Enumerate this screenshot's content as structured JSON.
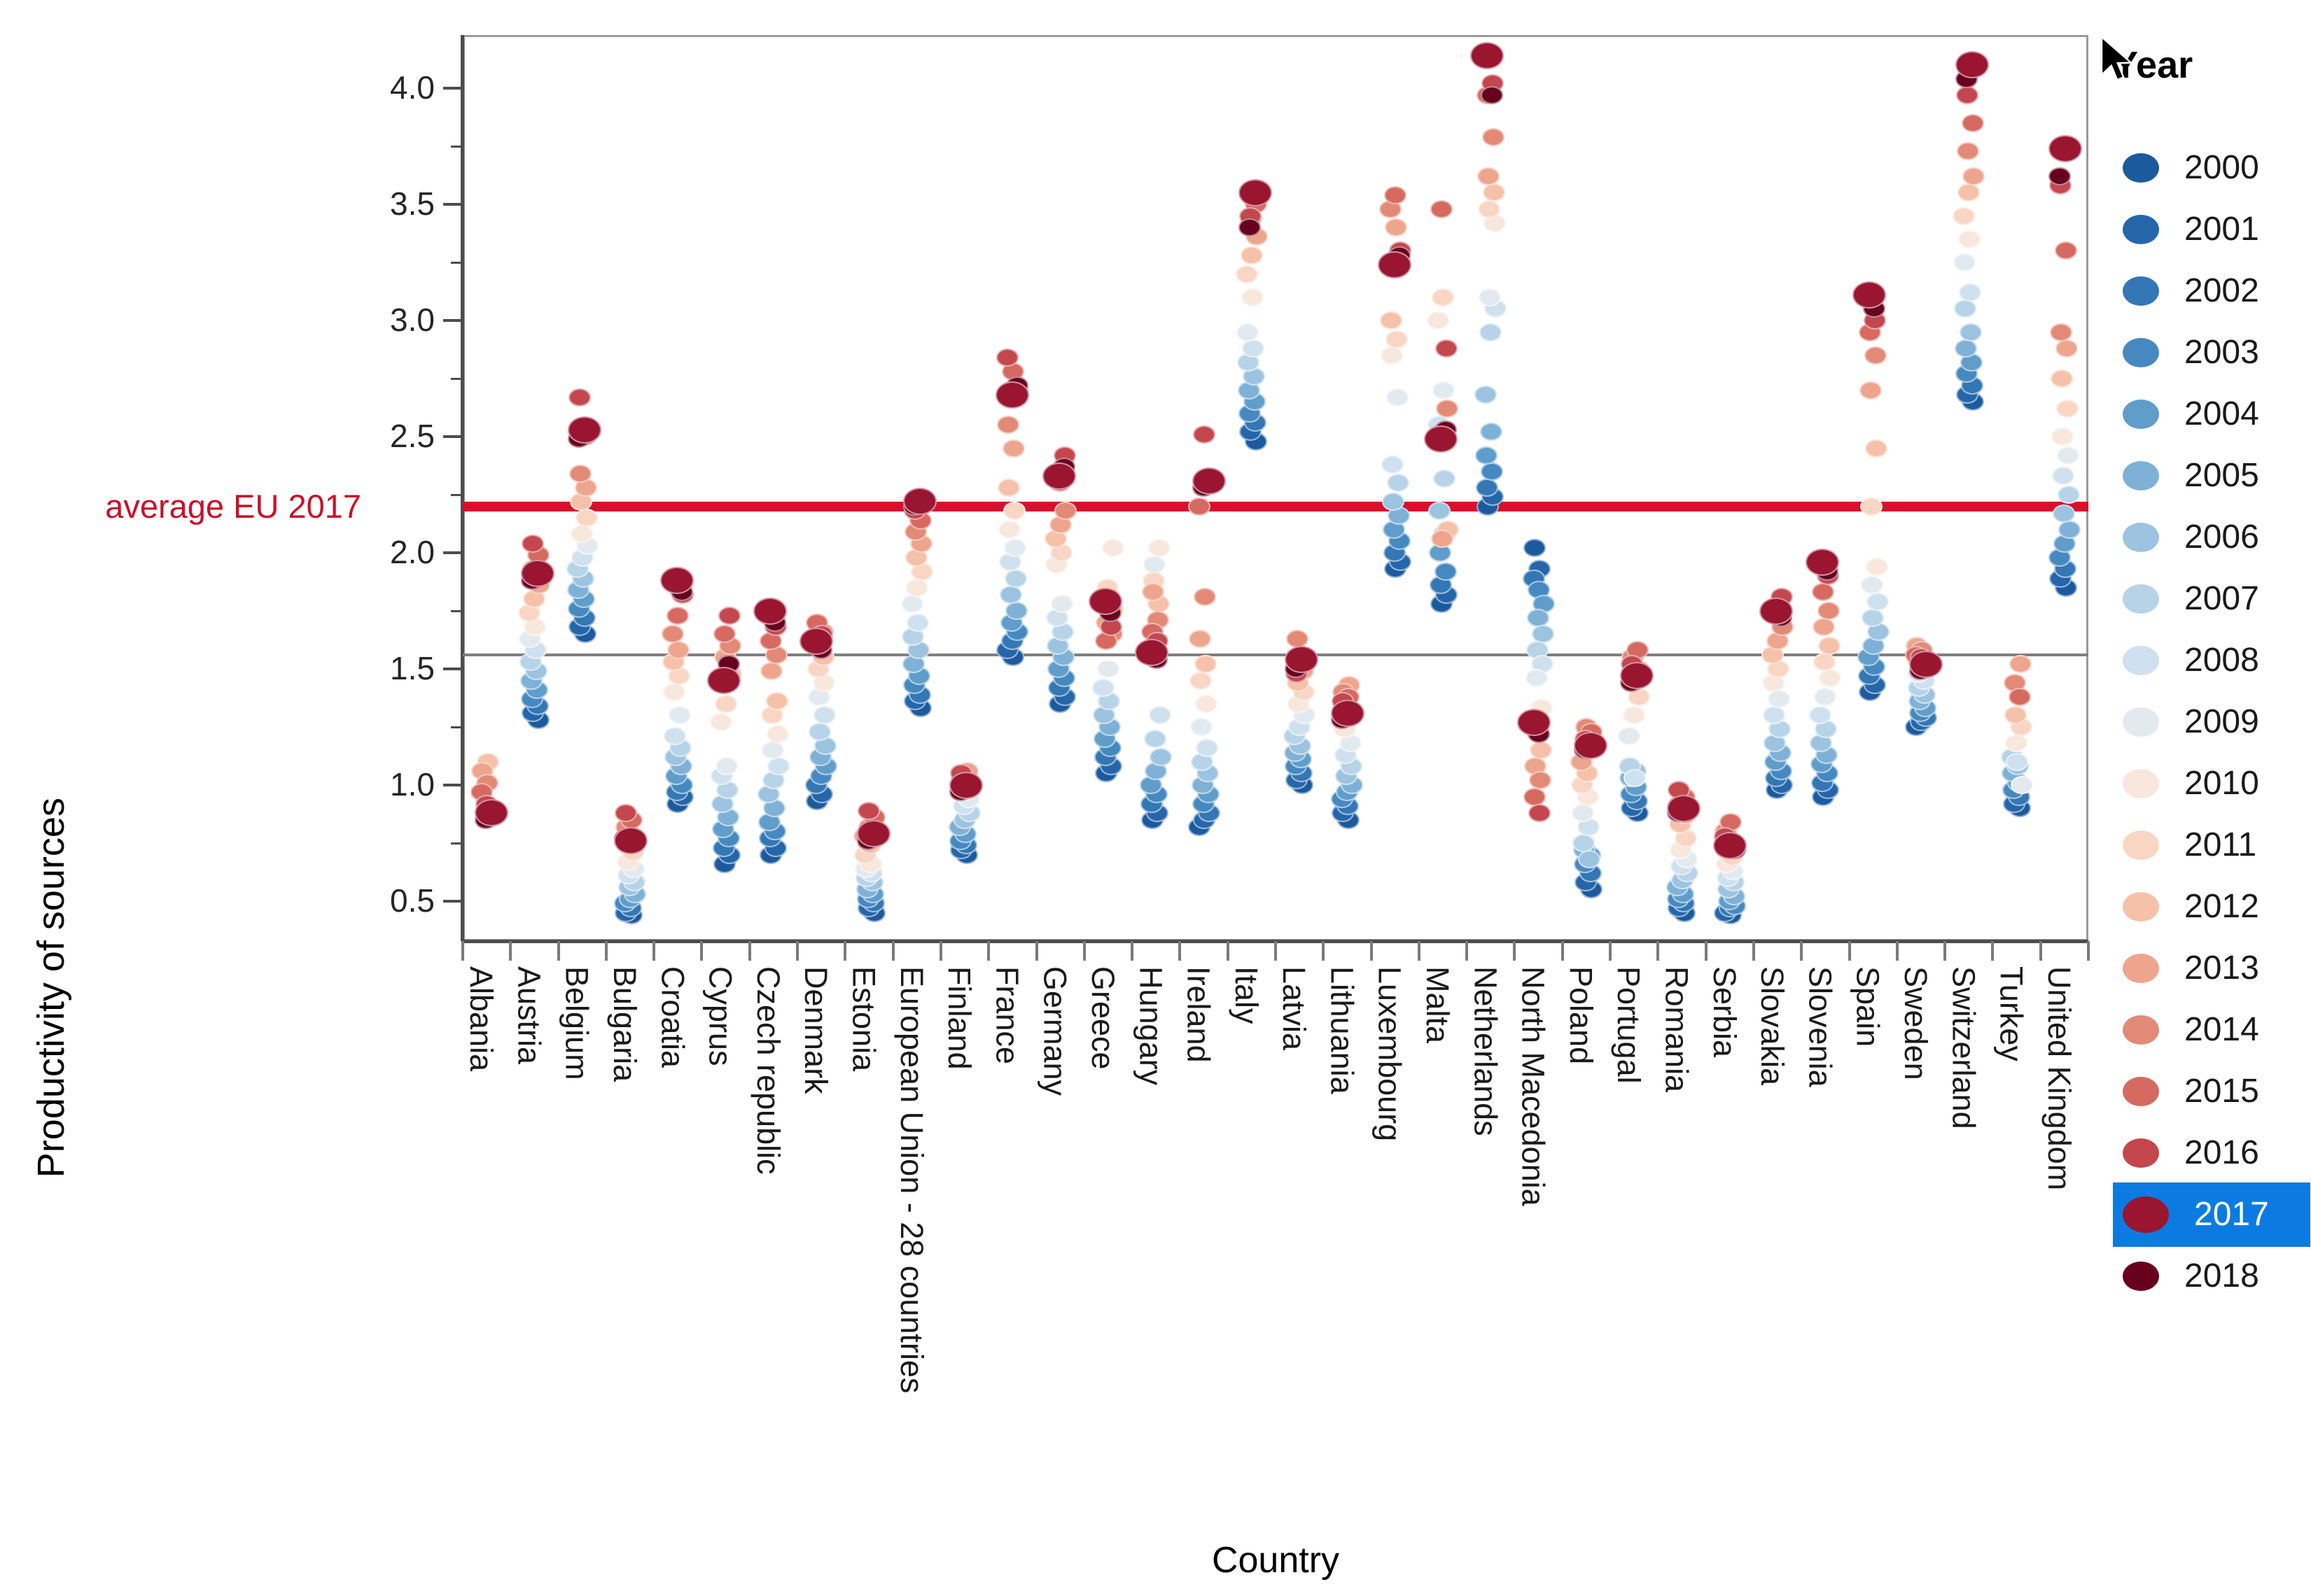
{
  "page": {
    "background": "#ffffff"
  },
  "y_axis": {
    "title": "Productivity of sources",
    "tick_labels": [
      "4.0",
      "3.5",
      "3.0",
      "2.5",
      "2.0",
      "1.5",
      "1.0",
      "0.5"
    ],
    "tick_values": [
      4.0,
      3.5,
      3.0,
      2.5,
      2.0,
      1.5,
      1.0,
      0.5
    ],
    "minor_tick_values": [
      3.75,
      3.25,
      2.75,
      2.25,
      1.75,
      1.25,
      0.75
    ]
  },
  "x_axis": {
    "title": "Country"
  },
  "reference_lines": {
    "eu_average": {
      "label": "average EU 2017",
      "value": 2.2,
      "color": "#d7112c"
    },
    "baseline": {
      "value": 1.56,
      "color": "#7f7f7f"
    }
  },
  "legend": {
    "title": "Year",
    "selected_year": "2017",
    "selection_color": "#0c7be1",
    "entries": [
      {
        "year": "2000",
        "color": "#1c5a9e"
      },
      {
        "year": "2001",
        "color": "#2566ab"
      },
      {
        "year": "2002",
        "color": "#3377b4"
      },
      {
        "year": "2003",
        "color": "#4689c0"
      },
      {
        "year": "2004",
        "color": "#609dcb"
      },
      {
        "year": "2005",
        "color": "#7fb1d6"
      },
      {
        "year": "2006",
        "color": "#9cc3df"
      },
      {
        "year": "2007",
        "color": "#b7d3e8"
      },
      {
        "year": "2008",
        "color": "#cfe0ee"
      },
      {
        "year": "2009",
        "color": "#e2eaf0"
      },
      {
        "year": "2010",
        "color": "#f7e7dc"
      },
      {
        "year": "2011",
        "color": "#f9d6c3"
      },
      {
        "year": "2012",
        "color": "#f5c1a9"
      },
      {
        "year": "2013",
        "color": "#eea58d"
      },
      {
        "year": "2014",
        "color": "#e38a77"
      },
      {
        "year": "2015",
        "color": "#d66a60"
      },
      {
        "year": "2016",
        "color": "#c4474e"
      },
      {
        "year": "2017",
        "color": "#991530"
      },
      {
        "year": "2018",
        "color": "#67001f"
      }
    ]
  },
  "chart_data": {
    "type": "scatter",
    "xlabel": "Country",
    "ylabel": "Productivity of sources",
    "ylim": [
      0.25,
      4.25
    ],
    "legend_position": "right",
    "grid": false,
    "highlight_year": 2017,
    "years": [
      2000,
      2001,
      2002,
      2003,
      2004,
      2005,
      2006,
      2007,
      2008,
      2009,
      2010,
      2011,
      2012,
      2013,
      2014,
      2015,
      2016,
      2017,
      2018
    ],
    "annotations": [
      {
        "text": "average EU 2017",
        "y": 2.2,
        "type": "hline-thick-red"
      },
      {
        "y": 1.56,
        "type": "hline-thin-gray"
      }
    ],
    "series": [
      {
        "country": "Albania",
        "values": [
          null,
          null,
          null,
          null,
          null,
          null,
          null,
          null,
          null,
          null,
          null,
          null,
          1.1,
          1.06,
          1.01,
          0.97,
          0.92,
          0.88,
          0.85
        ]
      },
      {
        "country": "Austria",
        "values": [
          1.28,
          1.31,
          1.34,
          1.37,
          1.41,
          1.45,
          1.49,
          1.53,
          1.58,
          1.63,
          1.68,
          1.74,
          1.8,
          1.86,
          1.93,
          1.99,
          2.04,
          1.91,
          1.88
        ]
      },
      {
        "country": "Belgium",
        "values": [
          1.65,
          1.68,
          1.72,
          1.76,
          1.8,
          1.84,
          1.89,
          1.93,
          1.98,
          2.03,
          2.08,
          2.15,
          2.22,
          2.28,
          2.34,
          2.5,
          2.67,
          2.53,
          2.49
        ]
      },
      {
        "country": "Bulgaria",
        "values": [
          0.44,
          0.45,
          0.47,
          0.49,
          0.51,
          0.53,
          0.56,
          0.58,
          0.61,
          0.64,
          0.67,
          0.71,
          0.74,
          0.78,
          0.82,
          0.85,
          0.88,
          0.76,
          0.77
        ]
      },
      {
        "country": "Croatia",
        "values": [
          0.92,
          0.95,
          0.97,
          1.0,
          1.04,
          1.08,
          1.12,
          1.16,
          1.21,
          1.3,
          1.4,
          1.47,
          1.53,
          1.58,
          1.65,
          1.73,
          1.82,
          1.88,
          1.83
        ]
      },
      {
        "country": "Cyprus",
        "values": [
          0.66,
          0.7,
          0.73,
          0.77,
          0.81,
          0.86,
          0.92,
          0.98,
          1.04,
          1.08,
          1.27,
          1.35,
          1.48,
          1.55,
          1.6,
          1.65,
          1.73,
          1.45,
          1.52
        ]
      },
      {
        "country": "Czech republic",
        "values": [
          0.7,
          0.73,
          0.77,
          0.8,
          0.84,
          0.9,
          0.96,
          1.02,
          1.08,
          1.15,
          1.22,
          1.3,
          1.36,
          1.49,
          1.56,
          1.62,
          1.68,
          1.75,
          1.7
        ]
      },
      {
        "country": "Denmark",
        "values": [
          0.93,
          0.96,
          1.0,
          1.04,
          1.08,
          1.12,
          1.17,
          1.23,
          1.3,
          1.38,
          1.44,
          1.5,
          1.55,
          1.6,
          1.66,
          1.7,
          1.65,
          1.62,
          1.58
        ]
      },
      {
        "country": "Estonia",
        "values": [
          0.45,
          0.47,
          0.49,
          0.51,
          0.53,
          0.55,
          0.58,
          0.6,
          0.62,
          0.64,
          0.66,
          0.7,
          0.74,
          0.78,
          0.82,
          0.86,
          0.89,
          0.79,
          0.76
        ]
      },
      {
        "country": "European Union - 28 countries",
        "values": [
          1.33,
          1.36,
          1.39,
          1.43,
          1.47,
          1.52,
          1.58,
          1.64,
          1.7,
          1.78,
          1.85,
          1.92,
          1.98,
          2.04,
          2.09,
          2.14,
          2.18,
          2.22,
          2.2
        ]
      },
      {
        "country": "Finland",
        "values": [
          0.7,
          0.72,
          0.74,
          0.76,
          0.79,
          0.82,
          0.85,
          0.88,
          0.91,
          0.94,
          0.97,
          1.0,
          1.03,
          1.06,
          1.04,
          1.02,
          1.05,
          1.0,
          0.97
        ]
      },
      {
        "country": "France",
        "values": [
          1.55,
          1.58,
          1.62,
          1.66,
          1.7,
          1.75,
          1.82,
          1.89,
          1.96,
          2.02,
          2.1,
          2.18,
          2.28,
          2.45,
          2.55,
          2.78,
          2.84,
          2.68,
          2.72
        ]
      },
      {
        "country": "Germany",
        "values": [
          1.35,
          1.38,
          1.42,
          1.46,
          1.5,
          1.55,
          1.6,
          1.66,
          1.72,
          1.78,
          1.95,
          2.0,
          2.06,
          2.12,
          2.18,
          2.3,
          2.42,
          2.33,
          2.37
        ]
      },
      {
        "country": "Greece",
        "values": [
          1.05,
          1.08,
          1.12,
          1.16,
          1.2,
          1.25,
          1.3,
          1.36,
          1.42,
          1.5,
          2.02,
          1.85,
          1.76,
          1.7,
          1.65,
          1.62,
          1.68,
          1.79,
          1.74
        ]
      },
      {
        "country": "Hungary",
        "values": [
          0.85,
          0.88,
          0.92,
          0.96,
          1.0,
          1.06,
          1.12,
          1.2,
          1.3,
          1.95,
          2.02,
          1.88,
          1.78,
          1.83,
          1.71,
          1.66,
          1.62,
          1.57,
          1.54
        ]
      },
      {
        "country": "Ireland",
        "values": [
          0.82,
          0.85,
          0.88,
          0.92,
          0.96,
          1.0,
          1.05,
          1.1,
          1.16,
          1.25,
          1.35,
          1.45,
          1.52,
          1.63,
          1.81,
          2.2,
          2.51,
          2.31,
          2.28
        ]
      },
      {
        "country": "Italy",
        "values": [
          2.48,
          2.52,
          2.56,
          2.6,
          2.65,
          2.7,
          2.76,
          2.82,
          2.88,
          2.95,
          3.1,
          3.2,
          3.28,
          3.36,
          3.44,
          3.5,
          3.45,
          3.55,
          3.4
        ]
      },
      {
        "country": "Latvia",
        "values": [
          1.0,
          1.02,
          1.05,
          1.08,
          1.11,
          1.14,
          1.17,
          1.21,
          1.25,
          1.3,
          1.35,
          1.4,
          1.44,
          1.49,
          1.63,
          1.55,
          1.48,
          1.54,
          1.5
        ]
      },
      {
        "country": "Lithuania",
        "values": [
          0.85,
          0.88,
          0.91,
          0.94,
          0.97,
          1.0,
          1.04,
          1.08,
          1.13,
          1.18,
          1.24,
          1.3,
          1.35,
          1.43,
          1.4,
          1.38,
          1.36,
          1.31,
          1.28
        ]
      },
      {
        "country": "Luxembourg",
        "values": [
          1.93,
          1.96,
          2.0,
          2.05,
          2.1,
          2.16,
          2.22,
          2.3,
          2.38,
          2.67,
          2.85,
          2.92,
          3.0,
          3.4,
          3.48,
          3.54,
          3.3,
          3.24,
          3.28
        ]
      },
      {
        "country": "Malta",
        "values": [
          1.78,
          1.82,
          1.86,
          1.92,
          2.0,
          2.08,
          2.18,
          2.32,
          2.55,
          2.7,
          3.0,
          3.1,
          2.1,
          2.06,
          2.62,
          3.48,
          2.88,
          2.49,
          2.53
        ]
      },
      {
        "country": "Netherlands",
        "values": [
          2.2,
          2.24,
          2.28,
          2.35,
          2.42,
          2.52,
          2.68,
          2.95,
          3.05,
          3.1,
          3.42,
          3.48,
          3.55,
          3.62,
          3.79,
          3.97,
          4.02,
          4.14,
          3.97
        ]
      },
      {
        "country": "North Macedonia",
        "values": [
          2.02,
          1.93,
          1.89,
          1.84,
          1.78,
          1.72,
          1.65,
          1.58,
          1.52,
          1.46,
          1.33,
          1.23,
          1.15,
          1.08,
          1.02,
          0.95,
          0.88,
          1.27,
          1.22
        ]
      },
      {
        "country": "Poland",
        "values": [
          0.55,
          0.58,
          0.62,
          0.66,
          0.7,
          0.72,
          0.68,
          0.75,
          0.82,
          0.88,
          0.95,
          1.0,
          1.05,
          1.1,
          1.25,
          1.23,
          1.2,
          1.17,
          1.15
        ]
      },
      {
        "country": "Portugal",
        "values": [
          0.88,
          0.9,
          0.93,
          0.96,
          0.99,
          1.03,
          1.06,
          1.08,
          1.03,
          1.21,
          1.3,
          1.38,
          1.45,
          1.5,
          1.55,
          1.58,
          1.52,
          1.47,
          1.44
        ]
      },
      {
        "country": "Romania",
        "values": [
          0.45,
          0.47,
          0.49,
          0.51,
          0.53,
          0.56,
          0.59,
          0.62,
          0.65,
          0.68,
          0.72,
          0.77,
          0.83,
          0.87,
          0.92,
          0.95,
          0.98,
          0.9,
          0.88
        ]
      },
      {
        "country": "Serbia",
        "values": [
          0.44,
          0.45,
          0.47,
          0.48,
          0.5,
          0.52,
          0.55,
          0.58,
          0.6,
          0.63,
          0.66,
          0.69,
          0.72,
          0.76,
          0.8,
          0.84,
          0.78,
          0.74,
          0.72
        ]
      },
      {
        "country": "Slovakia",
        "values": [
          0.98,
          1.0,
          1.03,
          1.06,
          1.1,
          1.14,
          1.18,
          1.24,
          1.3,
          1.37,
          1.44,
          1.5,
          1.56,
          1.62,
          1.68,
          1.75,
          1.81,
          1.75,
          1.72
        ]
      },
      {
        "country": "Slovenia",
        "values": [
          0.95,
          0.98,
          1.01,
          1.05,
          1.09,
          1.13,
          1.18,
          1.24,
          1.3,
          1.38,
          1.46,
          1.53,
          1.6,
          1.68,
          1.75,
          1.83,
          1.9,
          1.96,
          1.92
        ]
      },
      {
        "country": "Spain",
        "values": [
          1.4,
          1.43,
          1.47,
          1.51,
          1.55,
          1.6,
          1.66,
          1.72,
          1.79,
          1.86,
          1.94,
          2.2,
          2.45,
          2.7,
          2.85,
          2.95,
          3.0,
          3.11,
          3.05
        ]
      },
      {
        "country": "Sweden",
        "values": [
          1.25,
          1.27,
          1.29,
          1.31,
          1.33,
          1.36,
          1.39,
          1.42,
          1.45,
          1.48,
          1.51,
          1.54,
          1.57,
          1.6,
          1.58,
          1.56,
          1.55,
          1.52,
          1.49
        ]
      },
      {
        "country": "Switzerland",
        "values": [
          2.65,
          2.68,
          2.72,
          2.77,
          2.82,
          2.88,
          2.95,
          3.05,
          3.12,
          3.25,
          3.35,
          3.45,
          3.55,
          3.62,
          3.73,
          3.85,
          3.97,
          4.1,
          4.04
        ]
      },
      {
        "country": "Turkey",
        "values": [
          0.9,
          0.92,
          0.95,
          0.98,
          1.01,
          1.05,
          1.08,
          1.12,
          1.1,
          1.0,
          1.18,
          1.25,
          1.3,
          1.52,
          1.44,
          1.38,
          null,
          null,
          null
        ]
      },
      {
        "country": "United Kingdom",
        "values": [
          1.85,
          1.89,
          1.93,
          1.98,
          2.04,
          2.1,
          2.17,
          2.25,
          2.33,
          2.42,
          2.5,
          2.62,
          2.75,
          2.88,
          2.95,
          3.3,
          3.58,
          3.74,
          3.62
        ]
      }
    ]
  }
}
